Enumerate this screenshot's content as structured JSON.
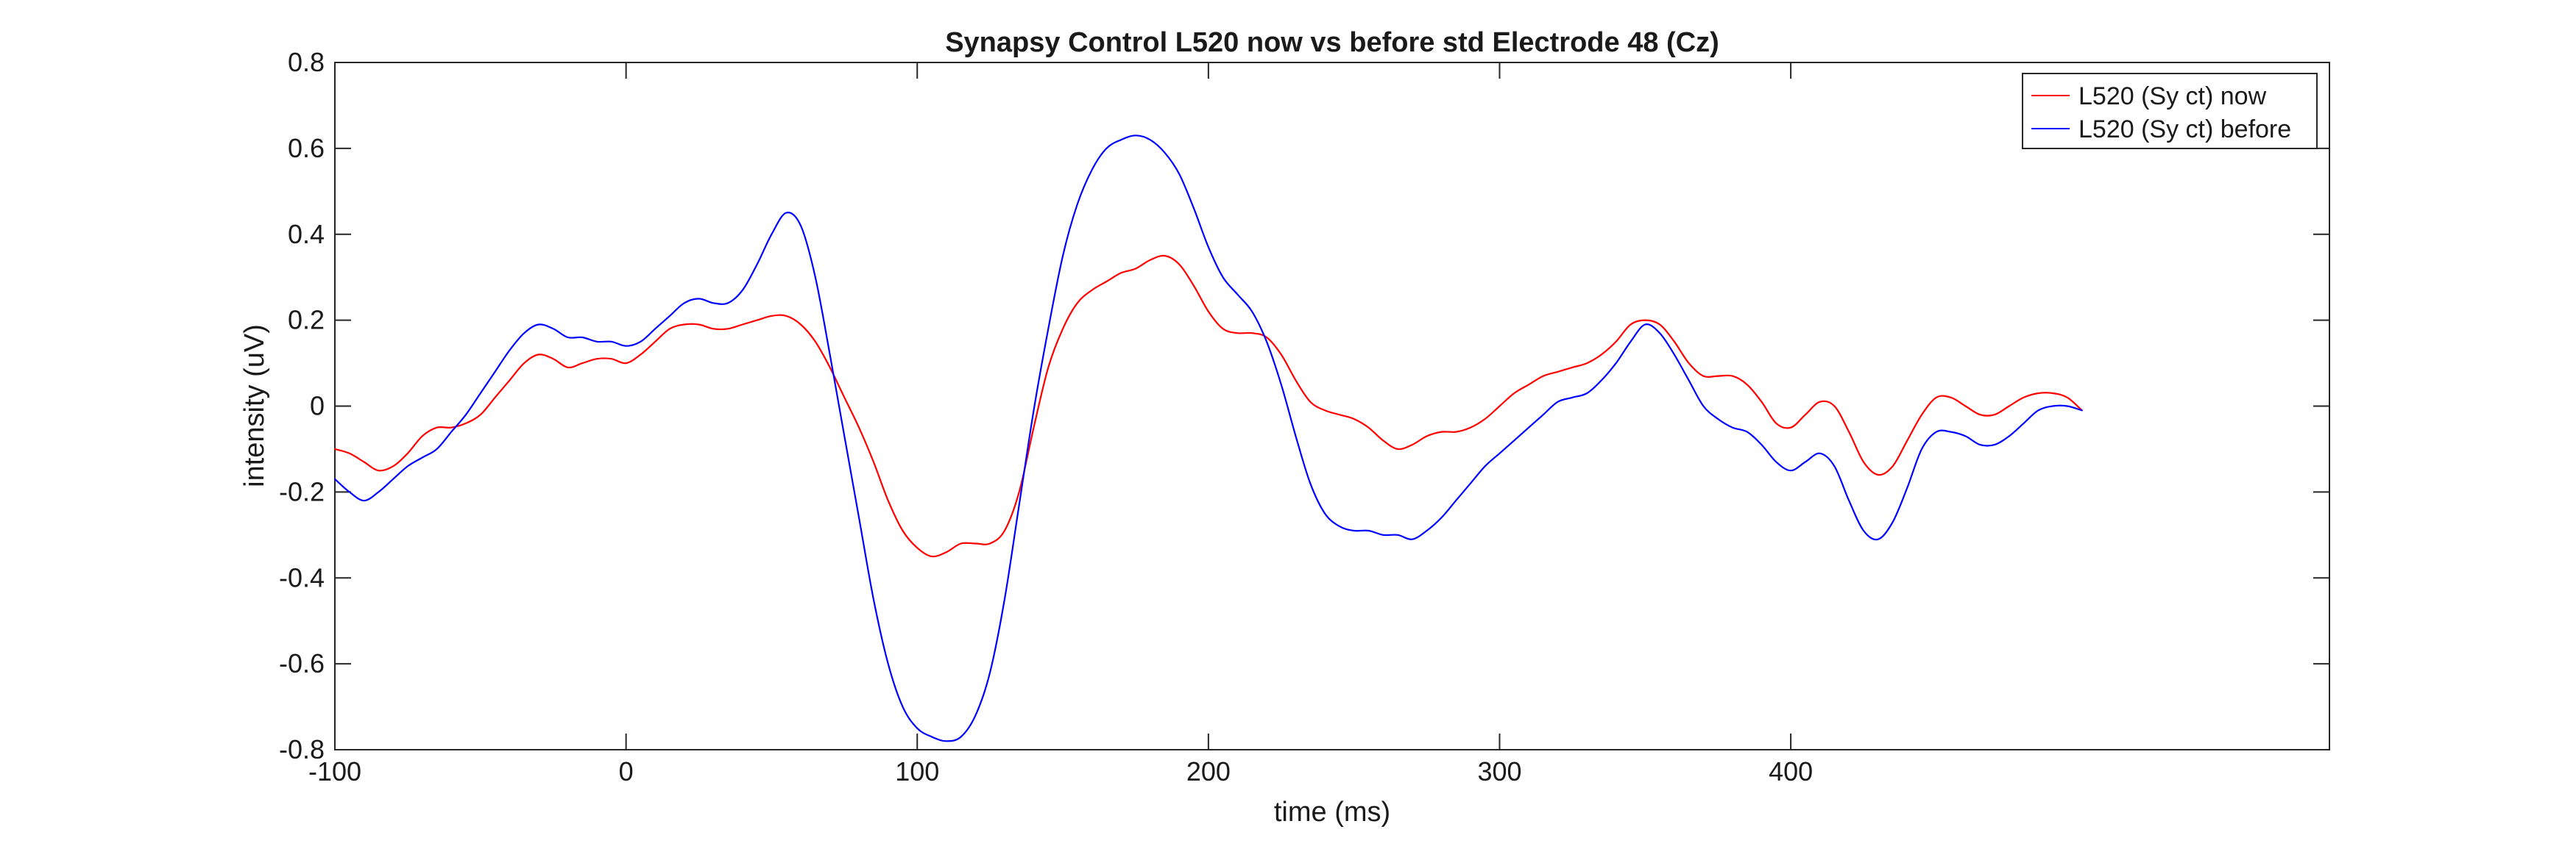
{
  "chart_data": {
    "type": "line",
    "title": "Synapsy Control L520 now vs before std Electrode 48 (Cz)",
    "xlabel": "time (ms)",
    "ylabel": "intensity (uV)",
    "xlim": [
      -100,
      585
    ],
    "ylim": [
      -0.8,
      0.8
    ],
    "xticks": [
      -100,
      0,
      100,
      200,
      300,
      400
    ],
    "yticks": [
      -0.8,
      -0.6,
      -0.4,
      -0.2,
      0,
      0.2,
      0.4,
      0.6,
      0.8
    ],
    "grid": false,
    "legend_position": "top-right",
    "series": [
      {
        "name": "L520 (Sy ct) now",
        "color": "#ff0000",
        "x": [
          -100,
          -95,
          -90,
          -85,
          -80,
          -75,
          -70,
          -65,
          -60,
          -55,
          -50,
          -45,
          -40,
          -35,
          -30,
          -25,
          -20,
          -15,
          -10,
          -5,
          0,
          5,
          10,
          15,
          20,
          25,
          30,
          35,
          40,
          45,
          50,
          55,
          60,
          65,
          70,
          75,
          80,
          85,
          90,
          95,
          100,
          105,
          110,
          115,
          120,
          125,
          130,
          135,
          140,
          145,
          150,
          155,
          160,
          165,
          170,
          175,
          180,
          185,
          190,
          195,
          200,
          205,
          210,
          215,
          220,
          225,
          230,
          235,
          240,
          245,
          250,
          255,
          260,
          265,
          270,
          275,
          280,
          285,
          290,
          295,
          300,
          305,
          310,
          315,
          320,
          325,
          330,
          335,
          340,
          345,
          350,
          355,
          360,
          365,
          370,
          375,
          380,
          385,
          390,
          395,
          400,
          405,
          410,
          415,
          420,
          425,
          430,
          435,
          440,
          445,
          450,
          455,
          460,
          465,
          470,
          475,
          480,
          485,
          490,
          495,
          500
        ],
        "y": [
          -0.1,
          -0.11,
          -0.13,
          -0.15,
          -0.14,
          -0.11,
          -0.07,
          -0.05,
          -0.05,
          -0.04,
          -0.02,
          0.02,
          0.06,
          0.1,
          0.12,
          0.11,
          0.09,
          0.1,
          0.11,
          0.11,
          0.1,
          0.12,
          0.15,
          0.18,
          0.19,
          0.19,
          0.18,
          0.18,
          0.19,
          0.2,
          0.21,
          0.21,
          0.19,
          0.15,
          0.09,
          0.02,
          -0.05,
          -0.13,
          -0.22,
          -0.29,
          -0.33,
          -0.35,
          -0.34,
          -0.32,
          -0.32,
          -0.32,
          -0.29,
          -0.2,
          -0.05,
          0.09,
          0.18,
          0.24,
          0.27,
          0.29,
          0.31,
          0.32,
          0.34,
          0.35,
          0.33,
          0.28,
          0.22,
          0.18,
          0.17,
          0.17,
          0.16,
          0.12,
          0.06,
          0.01,
          -0.01,
          -0.02,
          -0.03,
          -0.05,
          -0.08,
          -0.1,
          -0.09,
          -0.07,
          -0.06,
          -0.06,
          -0.05,
          -0.03,
          0.0,
          0.03,
          0.05,
          0.07,
          0.08,
          0.09,
          0.1,
          0.12,
          0.15,
          0.19,
          0.2,
          0.19,
          0.15,
          0.1,
          0.07,
          0.07,
          0.07,
          0.05,
          0.01,
          -0.04,
          -0.05,
          -0.02,
          0.01,
          0.0,
          -0.06,
          -0.13,
          -0.16,
          -0.14,
          -0.08,
          -0.02,
          0.02,
          0.02,
          0.0,
          -0.02,
          -0.02,
          0.0,
          0.02,
          0.03,
          0.03,
          0.02,
          -0.01
        ]
      },
      {
        "name": "L520 (Sy ct) before",
        "color": "#0000ff",
        "x": [
          -100,
          -95,
          -90,
          -85,
          -80,
          -75,
          -70,
          -65,
          -60,
          -55,
          -50,
          -45,
          -40,
          -35,
          -30,
          -25,
          -20,
          -15,
          -10,
          -5,
          0,
          5,
          10,
          15,
          20,
          25,
          30,
          35,
          40,
          45,
          50,
          55,
          60,
          65,
          70,
          75,
          80,
          85,
          90,
          95,
          100,
          105,
          110,
          115,
          120,
          125,
          130,
          135,
          140,
          145,
          150,
          155,
          160,
          165,
          170,
          175,
          180,
          185,
          190,
          195,
          200,
          205,
          210,
          215,
          220,
          225,
          230,
          235,
          240,
          245,
          250,
          255,
          260,
          265,
          270,
          275,
          280,
          285,
          290,
          295,
          300,
          305,
          310,
          315,
          320,
          325,
          330,
          335,
          340,
          345,
          350,
          355,
          360,
          365,
          370,
          375,
          380,
          385,
          390,
          395,
          400,
          405,
          410,
          415,
          420,
          425,
          430,
          435,
          440,
          445,
          450,
          455,
          460,
          465,
          470,
          475,
          480,
          485,
          490,
          495,
          500
        ],
        "y": [
          -0.17,
          -0.2,
          -0.22,
          -0.2,
          -0.17,
          -0.14,
          -0.12,
          -0.1,
          -0.06,
          -0.02,
          0.03,
          0.08,
          0.13,
          0.17,
          0.19,
          0.18,
          0.16,
          0.16,
          0.15,
          0.15,
          0.14,
          0.15,
          0.18,
          0.21,
          0.24,
          0.25,
          0.24,
          0.24,
          0.27,
          0.33,
          0.4,
          0.45,
          0.42,
          0.3,
          0.12,
          -0.07,
          -0.26,
          -0.45,
          -0.6,
          -0.7,
          -0.75,
          -0.77,
          -0.78,
          -0.77,
          -0.72,
          -0.62,
          -0.45,
          -0.23,
          -0.01,
          0.18,
          0.35,
          0.47,
          0.55,
          0.6,
          0.62,
          0.63,
          0.62,
          0.59,
          0.54,
          0.46,
          0.37,
          0.3,
          0.26,
          0.22,
          0.15,
          0.05,
          -0.07,
          -0.18,
          -0.25,
          -0.28,
          -0.29,
          -0.29,
          -0.3,
          -0.3,
          -0.31,
          -0.29,
          -0.26,
          -0.22,
          -0.18,
          -0.14,
          -0.11,
          -0.08,
          -0.05,
          -0.02,
          0.01,
          0.02,
          0.03,
          0.06,
          0.1,
          0.15,
          0.19,
          0.17,
          0.12,
          0.06,
          0.0,
          -0.03,
          -0.05,
          -0.06,
          -0.09,
          -0.13,
          -0.15,
          -0.13,
          -0.11,
          -0.14,
          -0.22,
          -0.29,
          -0.31,
          -0.27,
          -0.19,
          -0.1,
          -0.06,
          -0.06,
          -0.07,
          -0.09,
          -0.09,
          -0.07,
          -0.04,
          -0.01,
          0.0,
          0.0,
          -0.01
        ]
      }
    ]
  }
}
